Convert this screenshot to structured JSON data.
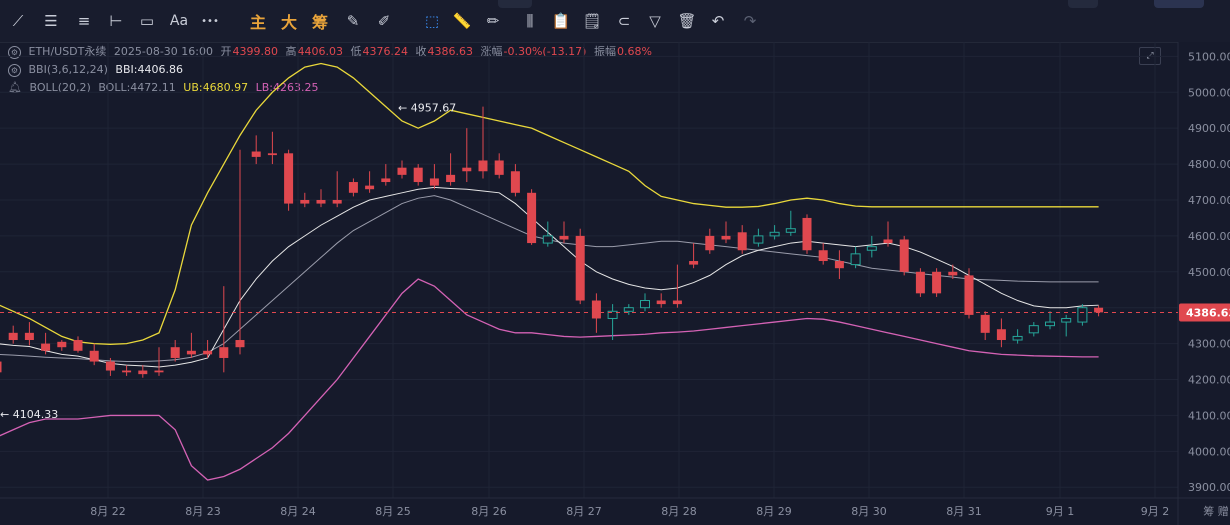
{
  "toolbar": {
    "items": [
      {
        "name": "trendline-tool-icon",
        "glyph": "⟋",
        "style": ""
      },
      {
        "name": "parallel-lines-tool-icon",
        "glyph": "☰",
        "style": ""
      },
      {
        "name": "horizontal-lines-tool-icon",
        "glyph": "≡",
        "style": ""
      },
      {
        "name": "crosshair-line-tool-icon",
        "glyph": "⊢",
        "style": ""
      },
      {
        "name": "rectangle-tool-icon",
        "glyph": "▭",
        "style": ""
      },
      {
        "name": "text-tool-icon",
        "glyph": "Aa",
        "style": ""
      },
      {
        "name": "more-tools-icon",
        "glyph": "•••",
        "style": ""
      },
      {
        "name": "main-indicator-button",
        "glyph": "主",
        "style": "orange"
      },
      {
        "name": "big-order-button",
        "glyph": "大",
        "style": "orange"
      },
      {
        "name": "chip-distribution-button",
        "glyph": "筹",
        "style": "orange"
      },
      {
        "name": "edit-icon",
        "glyph": "✎",
        "style": ""
      },
      {
        "name": "tool-pen-icon",
        "glyph": "✐",
        "style": ""
      },
      {
        "name": "select-mode-icon",
        "glyph": "⬚",
        "style": "blue"
      },
      {
        "name": "ruler-icon",
        "glyph": "📏",
        "style": ""
      },
      {
        "name": "brush-icon",
        "glyph": "✏",
        "style": ""
      },
      {
        "name": "candle-type-icon",
        "glyph": "⫼",
        "style": ""
      },
      {
        "name": "clipboard-icon",
        "glyph": "📋",
        "style": ""
      },
      {
        "name": "note-icon",
        "glyph": "🗒",
        "style": ""
      },
      {
        "name": "magnet-icon",
        "glyph": "⊂",
        "style": ""
      },
      {
        "name": "filter-icon",
        "glyph": "▽",
        "style": ""
      },
      {
        "name": "trash-icon",
        "glyph": "🗑",
        "style": ""
      },
      {
        "name": "undo-icon",
        "glyph": "↶",
        "style": ""
      },
      {
        "name": "redo-icon",
        "glyph": "↷",
        "style": "dim"
      }
    ]
  },
  "legend": {
    "symbol": "ETH/USDT永续",
    "datetime": "2025-08-30 16:00",
    "open_label": "开",
    "open": "4399.80",
    "high_label": "高",
    "high": "4406.03",
    "low_label": "低",
    "low": "4376.24",
    "close_label": "收",
    "close": "4386.63",
    "change_label": "涨幅",
    "change": "-0.30%(-13.17)",
    "amp_label": "振幅",
    "amp": "0.68%",
    "bbi_name": "BBI(3,6,12,24)",
    "bbi_value": "BBI:4406.86",
    "boll_name": "BOLL(20,2)",
    "boll_value": "BOLL:4472.11",
    "boll_ub": "UB:4680.97",
    "boll_lb": "LB:4263.25"
  },
  "chart_data": {
    "type": "candlestick",
    "ylim": [
      3870,
      5140
    ],
    "y_ticks": [
      3900,
      4000,
      4100,
      4200,
      4300,
      4400,
      4500,
      4600,
      4700,
      4800,
      4900,
      5000,
      5100
    ],
    "y_tick_labels": [
      "3900.00",
      "4000.00",
      "4100.00",
      "4200.00",
      "4300.00",
      "4400.00",
      "4500.00",
      "4600.00",
      "4700.00",
      "4800.00",
      "4900.00",
      "5000.00",
      "5100.00"
    ],
    "x_labels": [
      "8月 22",
      "8月 23",
      "8月 24",
      "8月 25",
      "8月 26",
      "8月 27",
      "8月 28",
      "8月 29",
      "8月 30",
      "8月 31",
      "9月 1",
      "9月 2",
      "筹 赠"
    ],
    "last_price": "4386.63",
    "annotations": [
      {
        "text": "4957.67",
        "value": 4957.67
      },
      {
        "text": "4104.33",
        "value": 4104.33
      }
    ],
    "colors": {
      "up": "#26a69a",
      "down": "#e0484f",
      "bbi": "#e6e6e6",
      "boll_mid": "#9a9cab",
      "ub": "#e9d83b",
      "lb": "#d462b5"
    },
    "candles": [
      [
        4250,
        4330,
        4220,
        4190
      ],
      [
        4330,
        4350,
        4310,
        4300
      ],
      [
        4330,
        4360,
        4310,
        4295
      ],
      [
        4300,
        4330,
        4280,
        4270
      ],
      [
        4305,
        4310,
        4290,
        4280
      ],
      [
        4310,
        4320,
        4280,
        4275
      ],
      [
        4280,
        4300,
        4250,
        4240
      ],
      [
        4250,
        4260,
        4225,
        4210
      ],
      [
        4225,
        4240,
        4220,
        4210
      ],
      [
        4225,
        4240,
        4215,
        4205
      ],
      [
        4225,
        4290,
        4220,
        4210
      ],
      [
        4290,
        4310,
        4260,
        4250
      ],
      [
        4280,
        4330,
        4270,
        4260
      ],
      [
        4280,
        4310,
        4270,
        4260
      ],
      [
        4290,
        4460,
        4260,
        4220
      ],
      [
        4310,
        4840,
        4290,
        4270
      ],
      [
        4835,
        4880,
        4820,
        4800
      ],
      [
        4830,
        4890,
        4825,
        4800
      ],
      [
        4830,
        4840,
        4690,
        4670
      ],
      [
        4700,
        4720,
        4690,
        4680
      ],
      [
        4700,
        4730,
        4690,
        4680
      ],
      [
        4700,
        4780,
        4690,
        4680
      ],
      [
        4750,
        4760,
        4720,
        4710
      ],
      [
        4740,
        4780,
        4730,
        4720
      ],
      [
        4760,
        4800,
        4750,
        4740
      ],
      [
        4790,
        4810,
        4770,
        4760
      ],
      [
        4790,
        4800,
        4750,
        4740
      ],
      [
        4760,
        4800,
        4740,
        4730
      ],
      [
        4770,
        4830,
        4750,
        4740
      ],
      [
        4790,
        4900,
        4780,
        4750
      ],
      [
        4810,
        4960,
        4780,
        4760
      ],
      [
        4810,
        4830,
        4770,
        4760
      ],
      [
        4780,
        4800,
        4720,
        4710
      ],
      [
        4720,
        4730,
        4580,
        4575
      ],
      [
        4580,
        4640,
        4600,
        4570
      ],
      [
        4600,
        4640,
        4590,
        4580
      ],
      [
        4600,
        4620,
        4420,
        4410
      ],
      [
        4420,
        4440,
        4370,
        4330
      ],
      [
        4370,
        4410,
        4390,
        4310
      ],
      [
        4390,
        4410,
        4400,
        4380
      ],
      [
        4400,
        4440,
        4420,
        4390
      ],
      [
        4420,
        4440,
        4410,
        4400
      ],
      [
        4420,
        4520,
        4410,
        4400
      ],
      [
        4530,
        4580,
        4520,
        4510
      ],
      [
        4600,
        4620,
        4560,
        4550
      ],
      [
        4600,
        4640,
        4590,
        4580
      ],
      [
        4610,
        4630,
        4560,
        4550
      ],
      [
        4580,
        4620,
        4600,
        4570
      ],
      [
        4600,
        4630,
        4610,
        4590
      ],
      [
        4610,
        4670,
        4620,
        4600
      ],
      [
        4650,
        4660,
        4560,
        4550
      ],
      [
        4560,
        4580,
        4530,
        4520
      ],
      [
        4530,
        4560,
        4510,
        4480
      ],
      [
        4520,
        4570,
        4550,
        4510
      ],
      [
        4560,
        4600,
        4570,
        4540
      ],
      [
        4590,
        4640,
        4580,
        4570
      ],
      [
        4590,
        4600,
        4500,
        4490
      ],
      [
        4500,
        4510,
        4440,
        4430
      ],
      [
        4500,
        4510,
        4440,
        4430
      ],
      [
        4500,
        4520,
        4490,
        4480
      ],
      [
        4490,
        4510,
        4380,
        4370
      ],
      [
        4380,
        4390,
        4330,
        4310
      ],
      [
        4340,
        4370,
        4310,
        4290
      ],
      [
        4310,
        4340,
        4320,
        4300
      ],
      [
        4330,
        4360,
        4350,
        4320
      ],
      [
        4350,
        4390,
        4360,
        4340
      ],
      [
        4360,
        4380,
        4370,
        4320
      ],
      [
        4360,
        4410,
        4400,
        4350
      ],
      [
        4400,
        4406,
        4387,
        4376
      ]
    ],
    "bbi": [
      4300,
      4295,
      4292,
      4280,
      4270,
      4265,
      4255,
      4245,
      4240,
      4238,
      4235,
      4240,
      4248,
      4260,
      4340,
      4420,
      4480,
      4530,
      4570,
      4600,
      4630,
      4655,
      4680,
      4700,
      4710,
      4720,
      4730,
      4735,
      4732,
      4730,
      4725,
      4720,
      4690,
      4650,
      4610,
      4570,
      4530,
      4500,
      4480,
      4465,
      4455,
      4450,
      4455,
      4470,
      4490,
      4520,
      4545,
      4560,
      4570,
      4580,
      4585,
      4580,
      4575,
      4570,
      4575,
      4580,
      4570,
      4555,
      4535,
      4515,
      4490,
      4465,
      4440,
      4420,
      4405,
      4400,
      4400,
      4405,
      4407
    ],
    "boll_mid": [
      4270,
      4268,
      4265,
      4262,
      4260,
      4258,
      4255,
      4252,
      4250,
      4250,
      4252,
      4255,
      4262,
      4275,
      4300,
      4340,
      4380,
      4420,
      4460,
      4500,
      4540,
      4580,
      4615,
      4640,
      4665,
      4690,
      4705,
      4712,
      4700,
      4680,
      4660,
      4640,
      4620,
      4600,
      4590,
      4580,
      4575,
      4570,
      4570,
      4575,
      4580,
      4585,
      4585,
      4580,
      4575,
      4570,
      4565,
      4560,
      4555,
      4550,
      4545,
      4540,
      4530,
      4520,
      4510,
      4505,
      4500,
      4495,
      4490,
      4485,
      4480,
      4478,
      4476,
      4474,
      4473,
      4472,
      4472,
      4472,
      4472
    ],
    "ub": [
      4410,
      4390,
      4370,
      4345,
      4320,
      4305,
      4300,
      4298,
      4300,
      4310,
      4330,
      4450,
      4630,
      4720,
      4800,
      4880,
      4950,
      5000,
      5040,
      5070,
      5080,
      5070,
      5040,
      5000,
      4960,
      4920,
      4900,
      4920,
      4950,
      4940,
      4930,
      4920,
      4910,
      4900,
      4880,
      4860,
      4840,
      4820,
      4800,
      4780,
      4740,
      4710,
      4700,
      4690,
      4685,
      4680,
      4680,
      4682,
      4690,
      4700,
      4705,
      4700,
      4690,
      4683,
      4681,
      4681,
      4681,
      4681,
      4681,
      4681,
      4681,
      4681,
      4681,
      4681,
      4681,
      4681,
      4681,
      4681,
      4681
    ],
    "lb": [
      4040,
      4060,
      4080,
      4090,
      4090,
      4090,
      4095,
      4100,
      4100,
      4100,
      4100,
      4060,
      3960,
      3920,
      3930,
      3950,
      3980,
      4010,
      4050,
      4100,
      4150,
      4200,
      4260,
      4320,
      4380,
      4440,
      4480,
      4460,
      4420,
      4380,
      4360,
      4340,
      4330,
      4330,
      4325,
      4320,
      4318,
      4320,
      4322,
      4324,
      4326,
      4330,
      4332,
      4335,
      4340,
      4345,
      4350,
      4355,
      4360,
      4365,
      4370,
      4368,
      4360,
      4350,
      4340,
      4330,
      4320,
      4310,
      4300,
      4290,
      4280,
      4275,
      4270,
      4268,
      4266,
      4265,
      4264,
      4263,
      4263
    ]
  }
}
